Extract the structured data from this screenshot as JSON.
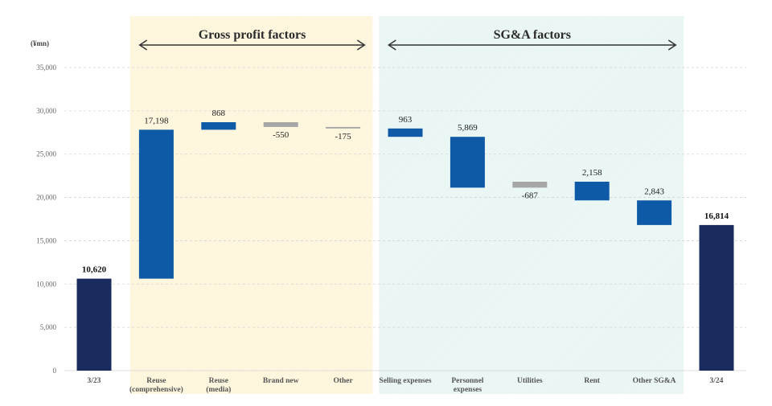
{
  "chart_data": {
    "type": "waterfall",
    "unit": "(¥mn)",
    "ylim": [
      0,
      35000
    ],
    "yticks": [
      "0",
      "5,000",
      "10,000",
      "15,000",
      "20,000",
      "25,000",
      "30,000",
      "35,000"
    ],
    "grid": true,
    "colors": {
      "total": "#1a2b5e",
      "increase": "#0e5aa7",
      "decrease": "#a6a6a6",
      "gross_band": "#fdf6dd",
      "sga_band": "#e9f6f4"
    },
    "groups": [
      {
        "title": "Gross profit factors",
        "from_index": 1,
        "to_index": 4
      },
      {
        "title": "SG&A factors",
        "from_index": 5,
        "to_index": 9
      }
    ],
    "bars": [
      {
        "category": [
          "3/23"
        ],
        "kind": "total",
        "start": 0,
        "end": 10620,
        "label": "10,620"
      },
      {
        "category": [
          "Reuse",
          "(comprehensive)"
        ],
        "kind": "increase",
        "start": 10620,
        "end": 27818,
        "label": "17,198"
      },
      {
        "category": [
          "Reuse",
          "(media)"
        ],
        "kind": "increase",
        "start": 27818,
        "end": 28686,
        "label": "868"
      },
      {
        "category": [
          "Brand new"
        ],
        "kind": "decrease",
        "start": 28686,
        "end": 28136,
        "label": "-550"
      },
      {
        "category": [
          "Other"
        ],
        "kind": "decrease",
        "start": 28136,
        "end": 27961,
        "label": "-175"
      },
      {
        "category": [
          "Selling expenses"
        ],
        "kind": "increase",
        "start": 27961,
        "end": 26998,
        "label": "963"
      },
      {
        "category": [
          "Personnel",
          "expenses"
        ],
        "kind": "increase",
        "start": 26998,
        "end": 21129,
        "label": "5,869"
      },
      {
        "category": [
          "Utilities"
        ],
        "kind": "decrease",
        "start": 21129,
        "end": 21816,
        "label": "-687"
      },
      {
        "category": [
          "Rent"
        ],
        "kind": "increase",
        "start": 21816,
        "end": 19658,
        "label": "2,158"
      },
      {
        "category": [
          "Other SG&A"
        ],
        "kind": "increase",
        "start": 19658,
        "end": 16815,
        "label": "2,843"
      },
      {
        "category": [
          "3/24"
        ],
        "kind": "total",
        "start": 0,
        "end": 16814,
        "label": "16,814"
      }
    ]
  }
}
